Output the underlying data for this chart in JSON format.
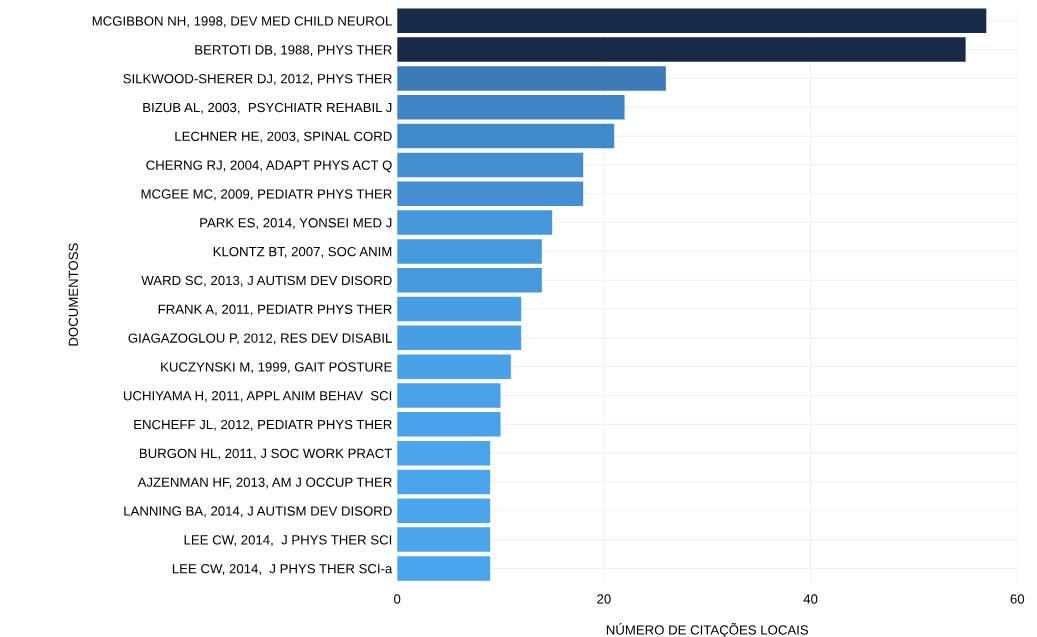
{
  "chart_data": {
    "type": "bar",
    "orientation": "horizontal",
    "xlabel": "NÚMERO DE CITAÇÕES LOCAIS",
    "ylabel": "DOCUMENTOSS",
    "categories": [
      "MCGIBBON NH, 1998, DEV MED CHILD NEUROL",
      "BERTOTI DB, 1988, PHYS THER",
      "SILKWOOD-SHERER DJ, 2012, PHYS THER",
      "BIZUB AL, 2003,  PSYCHIATR REHABIL J",
      "LECHNER HE, 2003, SPINAL CORD",
      "CHERNG RJ, 2004, ADAPT PHYS ACT Q",
      "MCGEE MC, 2009, PEDIATR PHYS THER",
      "PARK ES, 2014, YONSEI MED J",
      "KLONTZ BT, 2007, SOC ANIM",
      "WARD SC, 2013, J AUTISM DEV DISORD",
      "FRANK A, 2011, PEDIATR PHYS THER",
      "GIAGAZOGLOU P, 2012, RES DEV DISABIL",
      "KUCZYNSKI M, 1999, GAIT POSTURE",
      "UCHIYAMA H, 2011, APPL ANIM BEHAV  SCI",
      "ENCHEFF JL, 2012, PEDIATR PHYS THER",
      "BURGON HL, 2011, J SOC WORK PRACT",
      "AJZENMAN HF, 2013, AM J OCCUP THER",
      "LANNING BA, 2014, J AUTISM DEV DISORD",
      "LEE CW, 2014,  J PHYS THER SCI",
      "LEE CW, 2014,  J PHYS THER SCI-a"
    ],
    "values": [
      57,
      55,
      26,
      22,
      21,
      18,
      18,
      15,
      14,
      14,
      12,
      12,
      11,
      10,
      10,
      9,
      9,
      9,
      9,
      9
    ],
    "colors": [
      "#172a48",
      "#172a48",
      "#3a7bb8",
      "#3f86c7",
      "#418aca",
      "#438fd2",
      "#438fd2",
      "#4596da",
      "#4699dd",
      "#4699dd",
      "#489ee3",
      "#489ee3",
      "#48a0e6",
      "#49a2e9",
      "#49a2e9",
      "#4aa5ec",
      "#4aa5ec",
      "#4aa5ec",
      "#4aa5ec",
      "#4aa5ec"
    ],
    "xlim": [
      0,
      60
    ],
    "xticks": [
      0,
      20,
      40,
      60
    ],
    "grid": true
  }
}
